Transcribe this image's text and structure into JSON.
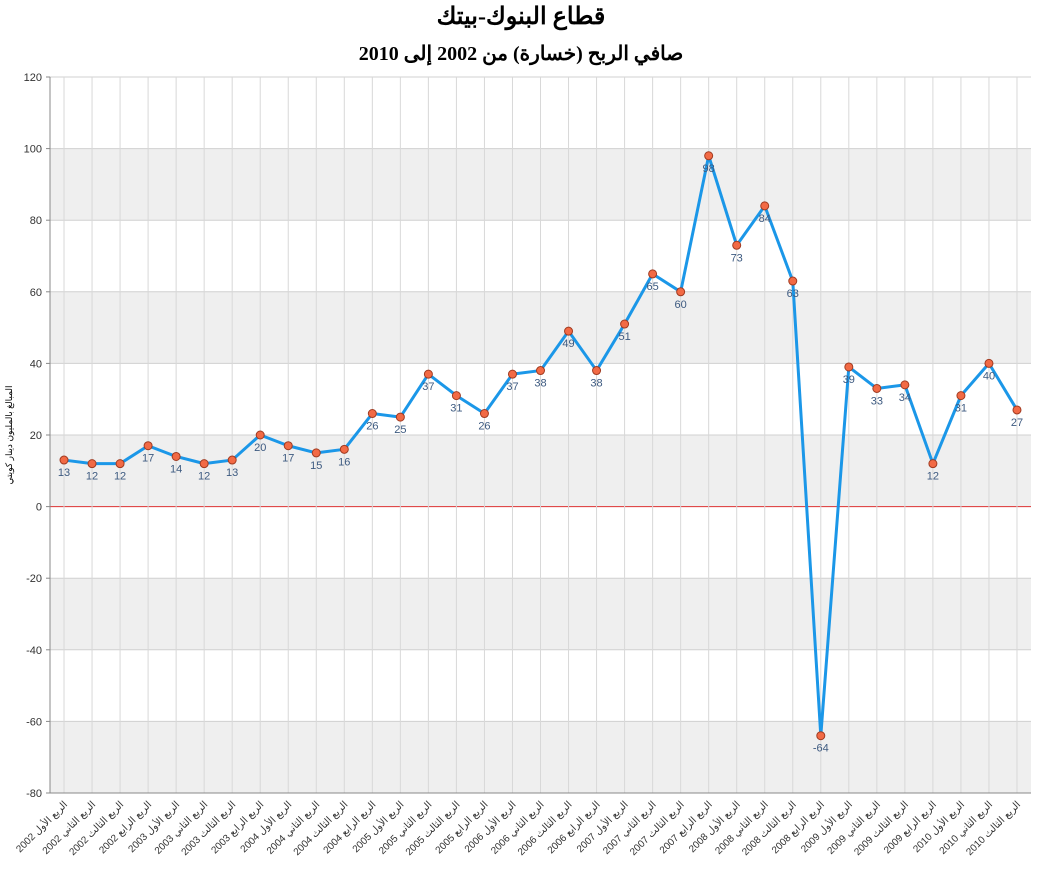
{
  "chart_data": {
    "type": "line",
    "title": "قطاع البنوك-بيتك",
    "subtitle": "صافي الربح (خسارة) من 2002 إلى 2010",
    "y_label": "المبالغ بالمليون دينار كويتي",
    "categories": [
      "الربع الأول 2002",
      "الربع الثاني 2002",
      "الربع الثالث 2002",
      "الربع الرابع 2002",
      "الربع الأول 2003",
      "الربع الثاني 2003",
      "الربع الثالث 2003",
      "الربع الرابع 2003",
      "الربع الأول 2004",
      "الربع الثاني 2004",
      "الربع الثالث 2004",
      "الربع الرابع 2004",
      "الربع الأول 2005",
      "الربع الثاني 2005",
      "الربع الثالث 2005",
      "الربع الرابع 2005",
      "الربع الأول 2006",
      "الربع الثاني 2006",
      "الربع الثالث 2006",
      "الربع الرابع 2006",
      "الربع الأول 2007",
      "الربع الثاني 2007",
      "الربع الثالث 2007",
      "الربع الرابع 2007",
      "الربع الأول 2008",
      "الربع الثاني 2008",
      "الربع الثالث 2008",
      "الربع الرابع 2008",
      "الربع الأول 2009",
      "الربع الثاني 2009",
      "الربع الثالث 2009",
      "الربع الرابع 2009",
      "الربع الأول 2010",
      "الربع الثاني 2010",
      "الربع الثالث 2010"
    ],
    "values": [
      13,
      12,
      12,
      17,
      14,
      12,
      13,
      20,
      17,
      15,
      16,
      26,
      25,
      37,
      31,
      26,
      37,
      38,
      49,
      38,
      51,
      65,
      60,
      98,
      73,
      84,
      63,
      -64,
      39,
      33,
      34,
      12,
      31,
      40,
      27
    ],
    "color": "#1b97e8",
    "marker_color": "#f26a45",
    "ylim": [
      -80,
      120
    ],
    "yticks": [
      -80,
      -60,
      -40,
      -20,
      0,
      20,
      40,
      60,
      80,
      100,
      120
    ],
    "grid": true
  }
}
